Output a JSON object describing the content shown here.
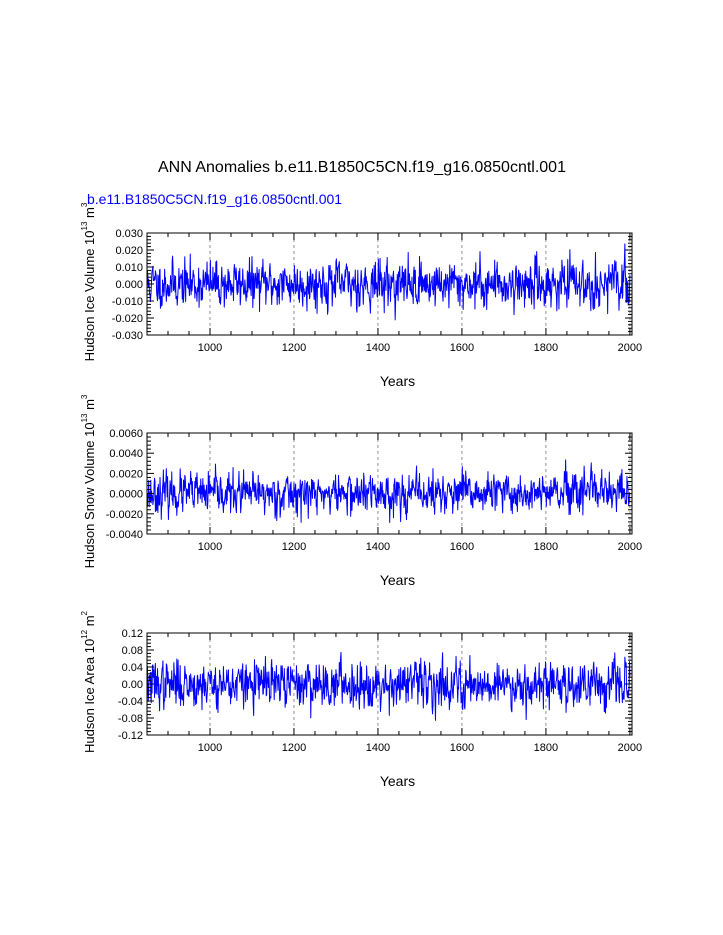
{
  "title": "ANN Anomalies b.e11.B1850C5CN.f19_g16.0850cntl.001",
  "subtitle": "b.e11.B1850C5CN.f19_g16.0850cntl.001",
  "colors": {
    "line": "#0000ff",
    "axis": "#000000",
    "grid": "#777777"
  },
  "chart_data": [
    {
      "type": "line",
      "name": "Hudson Ice Volume",
      "ylabel": {
        "main": "Hudson Ice Volume 10",
        "exp": "13",
        "unit": " m",
        "unit_exp": "3"
      },
      "xlabel": "Years",
      "xlim": [
        850,
        2005
      ],
      "ylim": [
        -0.03,
        0.03
      ],
      "x_ticks": [
        1000,
        1200,
        1400,
        1600,
        1800,
        2000
      ],
      "x_tick_labels": [
        "1000",
        "1200",
        "1400",
        "1600",
        "1800",
        "2000"
      ],
      "y_ticks": [
        -0.03,
        -0.02,
        -0.01,
        0.0,
        0.01,
        0.02,
        0.03
      ],
      "y_tick_labels": [
        "-0.030",
        "-0.020",
        "-0.010",
        "0.000",
        "0.010",
        "0.020",
        "0.030"
      ],
      "amplitude": 0.0065,
      "seed": 11
    },
    {
      "type": "line",
      "name": "Hudson Snow Volume",
      "ylabel": {
        "main": "Hudson Snow Volume 10",
        "exp": "13",
        "unit": " m",
        "unit_exp": "3"
      },
      "xlabel": "Years",
      "xlim": [
        850,
        2005
      ],
      "ylim": [
        -0.004,
        0.006
      ],
      "x_ticks": [
        1000,
        1200,
        1400,
        1600,
        1800,
        2000
      ],
      "x_tick_labels": [
        "1000",
        "1200",
        "1400",
        "1600",
        "1800",
        "2000"
      ],
      "y_ticks": [
        -0.004,
        -0.002,
        0.0,
        0.002,
        0.004,
        0.006
      ],
      "y_tick_labels": [
        "-0.0040",
        "-0.0020",
        "0.0000",
        "0.0020",
        "0.0040",
        "0.0060"
      ],
      "amplitude": 0.00095,
      "seed": 23
    },
    {
      "type": "line",
      "name": "Hudson Ice Area",
      "ylabel": {
        "main": "Hudson Ice Area 10",
        "exp": "12",
        "unit": " m",
        "unit_exp": "2"
      },
      "xlabel": "Years",
      "xlim": [
        850,
        2005
      ],
      "ylim": [
        -0.12,
        0.12
      ],
      "x_ticks": [
        1000,
        1200,
        1400,
        1600,
        1800,
        2000
      ],
      "x_tick_labels": [
        "1000",
        "1200",
        "1400",
        "1600",
        "1800",
        "2000"
      ],
      "y_ticks": [
        -0.12,
        -0.08,
        -0.04,
        0.0,
        0.04,
        0.08,
        0.12
      ],
      "y_tick_labels": [
        "-0.12",
        "-0.08",
        "-0.04",
        "0.00",
        "0.04",
        "0.08",
        "0.12"
      ],
      "amplitude": 0.026,
      "seed": 37
    }
  ]
}
